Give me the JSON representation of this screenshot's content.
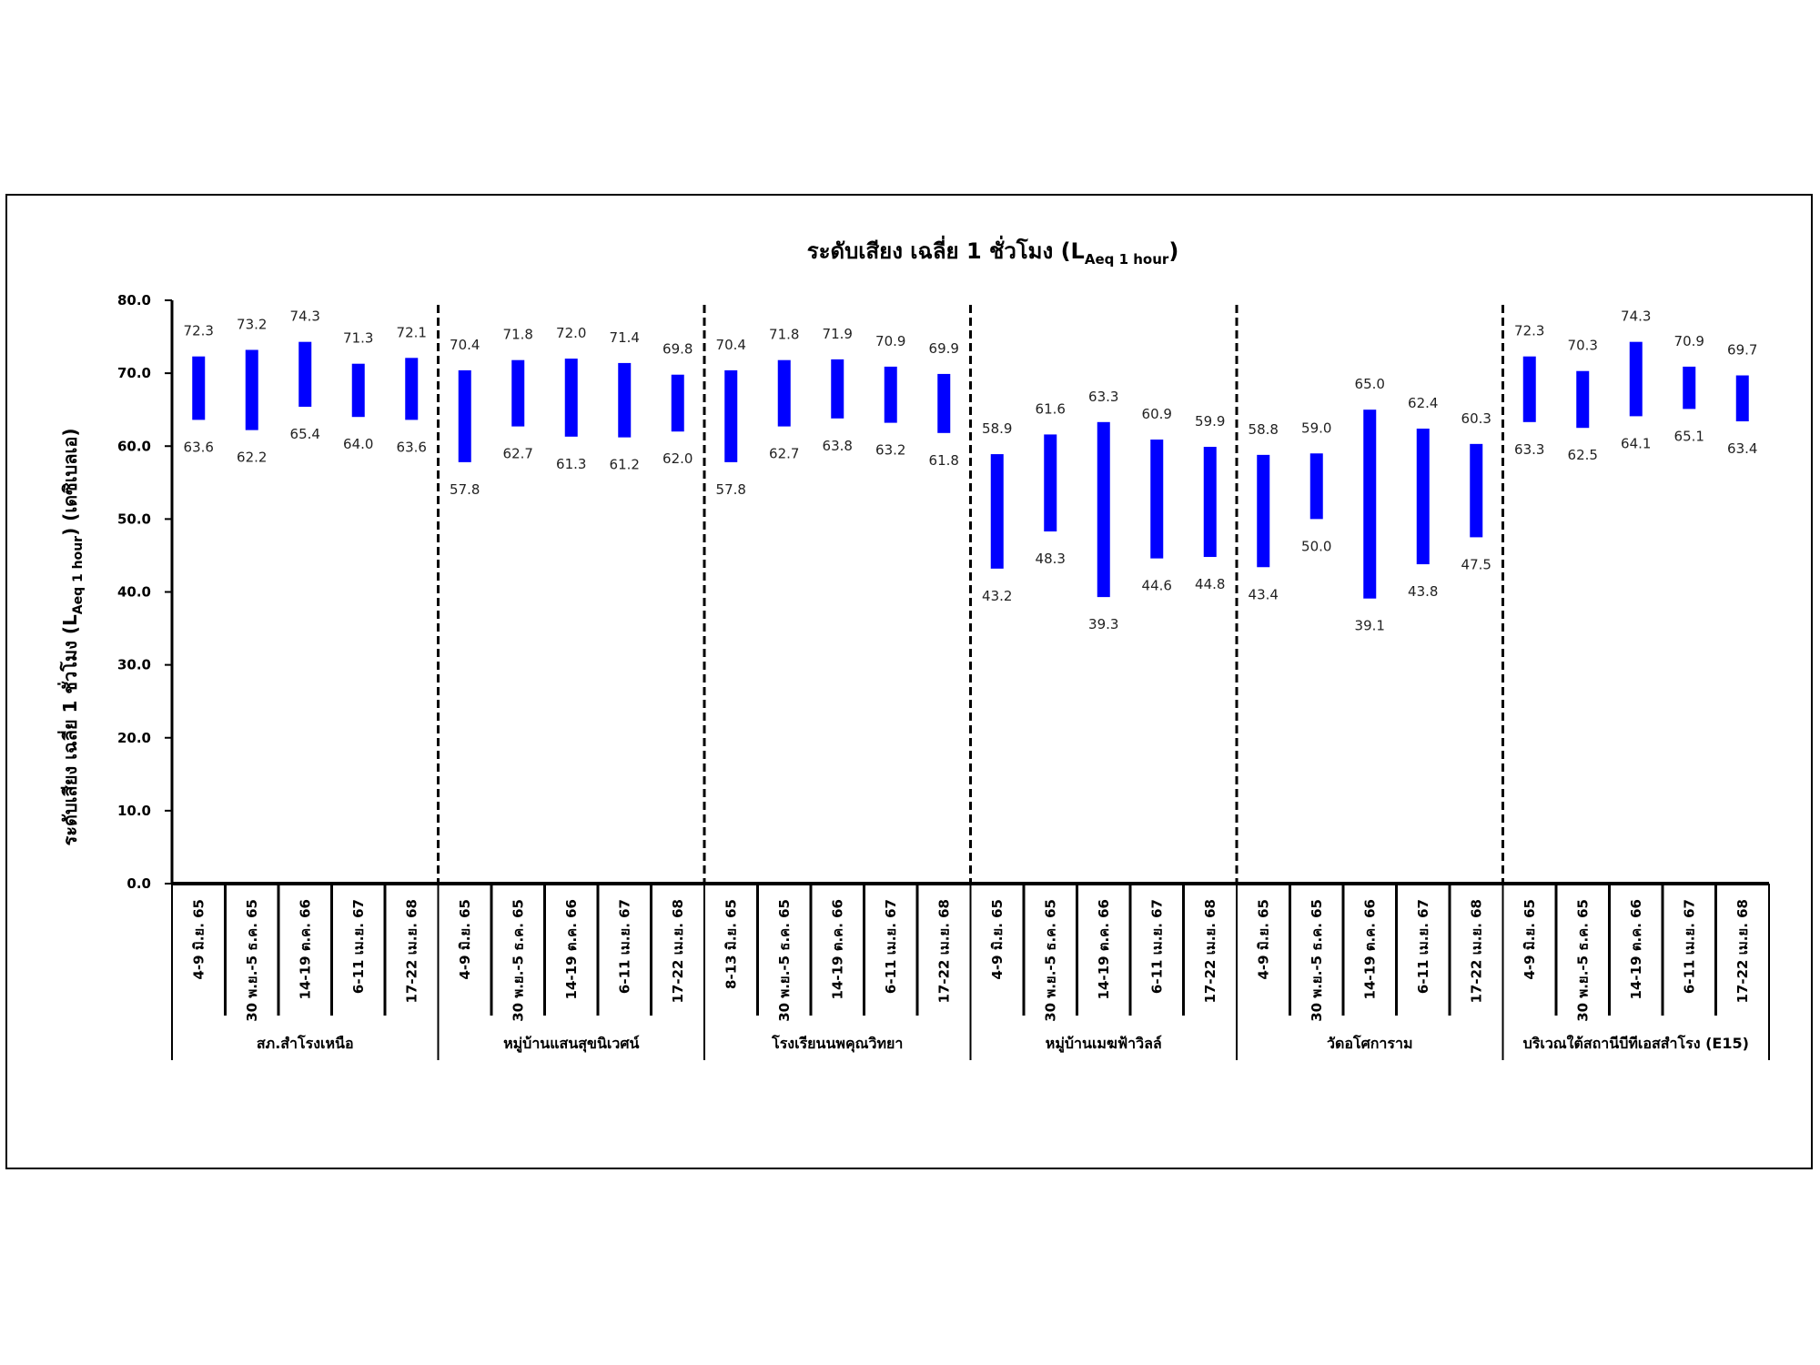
{
  "chart_data": {
    "type": "bar",
    "subtype": "floating-range",
    "title": "ระดับเสียง เฉลี่ย 1 ชั่วโมง (L",
    "title_sub": "Aeq 1 hour",
    "title_end": ")",
    "ylabel": "ระดับเสียง เฉลี่ย 1 ชั่วโมง (L",
    "ylabel_sub": "Aeq 1 hour",
    "ylabel_end": ")  (เดซิเบลเอ)",
    "ylim": [
      0,
      80
    ],
    "yticks": [
      "0.0",
      "10.0",
      "20.0",
      "30.0",
      "40.0",
      "50.0",
      "60.0",
      "70.0",
      "80.0"
    ],
    "bar_color": "#0000FF",
    "groups": [
      {
        "name": "สภ.สำโรงเหนือ",
        "categories": [
          "4-9 มิ.ย. 65",
          "30 พ.ย.-5 ธ.ค. 65",
          "14-19 ต.ค. 66",
          "6-11 เม.ย. 67",
          "17-22 เม.ย. 68"
        ],
        "max": [
          72.3,
          73.2,
          74.3,
          71.3,
          72.1
        ],
        "min": [
          63.6,
          62.2,
          65.4,
          64.0,
          63.6
        ]
      },
      {
        "name": "หมู่บ้านแสนสุขนิเวศน์",
        "categories": [
          "4-9 มิ.ย. 65",
          "30 พ.ย.-5 ธ.ค. 65",
          "14-19 ต.ค. 66",
          "6-11 เม.ย. 67",
          "17-22 เม.ย. 68"
        ],
        "max": [
          70.4,
          71.8,
          72.0,
          71.4,
          69.8
        ],
        "min": [
          57.8,
          62.7,
          61.3,
          61.2,
          62.0
        ]
      },
      {
        "name": "โรงเรียนนพคุณวิทยา",
        "categories": [
          "8-13 มิ.ย. 65",
          "30 พ.ย.-5 ธ.ค. 65",
          "14-19 ต.ค. 66",
          "6-11 เม.ย. 67",
          "17-22 เม.ย. 68"
        ],
        "max": [
          70.4,
          71.8,
          71.9,
          70.9,
          69.9
        ],
        "min": [
          57.8,
          62.7,
          63.8,
          63.2,
          61.8
        ]
      },
      {
        "name": "หมู่บ้านเมฆฟ้าวิลล์",
        "categories": [
          "4-9 มิ.ย. 65",
          "30 พ.ย.-5 ธ.ค. 65",
          "14-19 ต.ค. 66",
          "6-11 เม.ย. 67",
          "17-22 เม.ย. 68"
        ],
        "max": [
          58.9,
          61.6,
          63.3,
          60.9,
          59.9
        ],
        "min": [
          43.2,
          48.3,
          39.3,
          44.6,
          44.8
        ]
      },
      {
        "name": "วัดอโศการาม",
        "categories": [
          "4-9 มิ.ย. 65",
          "30 พ.ย.-5 ธ.ค. 65",
          "14-19 ต.ค. 66",
          "6-11 เม.ย. 67",
          "17-22 เม.ย. 68"
        ],
        "max": [
          58.8,
          59.0,
          65.0,
          62.4,
          60.3
        ],
        "min": [
          43.4,
          50.0,
          39.1,
          43.8,
          47.5
        ]
      },
      {
        "name": "บริเวณใต้สถานีบีทีเอสสำโรง (E15)",
        "categories": [
          "4-9 มิ.ย. 65",
          "30 พ.ย.-5 ธ.ค. 65",
          "14-19 ต.ค. 66",
          "6-11 เม.ย. 67",
          "17-22 เม.ย. 68"
        ],
        "max": [
          72.3,
          70.3,
          74.3,
          70.9,
          69.7
        ],
        "min": [
          63.3,
          62.5,
          64.1,
          65.1,
          63.4
        ]
      }
    ]
  }
}
